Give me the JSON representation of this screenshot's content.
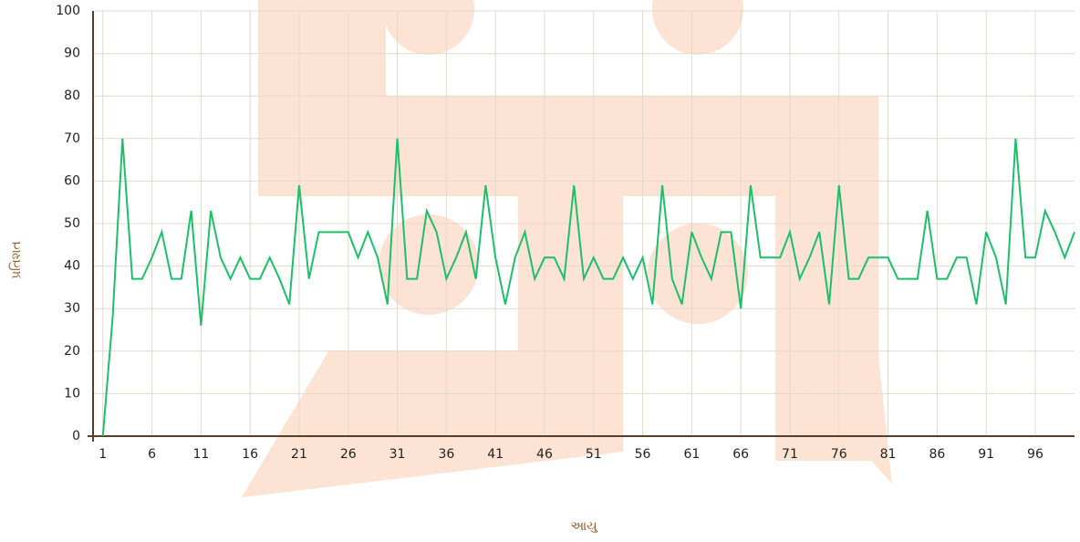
{
  "chart_data": {
    "type": "line",
    "x_label": "આયુ",
    "y_label": "પ્રતિશત",
    "x": [
      1,
      2,
      3,
      4,
      5,
      6,
      7,
      8,
      9,
      10,
      11,
      12,
      13,
      14,
      15,
      16,
      17,
      18,
      19,
      20,
      21,
      22,
      23,
      24,
      25,
      26,
      27,
      28,
      29,
      30,
      31,
      32,
      33,
      34,
      35,
      36,
      37,
      38,
      39,
      40,
      41,
      42,
      43,
      44,
      45,
      46,
      47,
      48,
      49,
      50,
      51,
      52,
      53,
      54,
      55,
      56,
      57,
      58,
      59,
      60,
      61,
      62,
      63,
      64,
      65,
      66,
      67,
      68,
      69,
      70,
      71,
      72,
      73,
      74,
      75,
      76,
      77,
      78,
      79,
      80,
      81,
      82,
      83,
      84,
      85,
      86,
      87,
      88,
      89,
      90,
      91,
      92,
      93,
      94,
      95,
      96,
      97,
      98,
      99,
      100
    ],
    "series": [
      {
        "color": "#1dbf6a",
        "values": [
          0,
          28,
          70,
          37,
          37,
          42,
          48,
          37,
          37,
          53,
          26,
          53,
          42,
          37,
          42,
          37,
          37,
          42,
          37,
          31,
          59,
          37,
          48,
          48,
          48,
          48,
          42,
          48,
          42,
          31,
          70,
          37,
          37,
          53,
          48,
          37,
          42,
          48,
          37,
          59,
          42,
          31,
          42,
          48,
          37,
          42,
          42,
          37,
          59,
          37,
          42,
          37,
          37,
          42,
          37,
          42,
          31,
          59,
          37,
          31,
          48,
          42,
          37,
          48,
          48,
          30,
          59,
          42,
          42,
          42,
          48,
          37,
          42,
          48,
          31,
          59,
          37,
          37,
          42,
          42,
          42,
          37,
          37,
          37,
          53,
          37,
          37,
          42,
          42,
          31,
          48,
          42,
          31,
          70,
          42,
          42,
          53,
          48,
          42,
          48
        ]
      }
    ],
    "xlim": [
      0,
      100
    ],
    "xticks": [
      1,
      6,
      11,
      16,
      21,
      26,
      31,
      36,
      41,
      46,
      51,
      56,
      61,
      66,
      71,
      76,
      81,
      86,
      91,
      96
    ],
    "ylim": [
      0,
      100
    ],
    "yticks": [
      0,
      10,
      20,
      30,
      40,
      50,
      60,
      70,
      80,
      90,
      100
    ],
    "grid": true
  }
}
